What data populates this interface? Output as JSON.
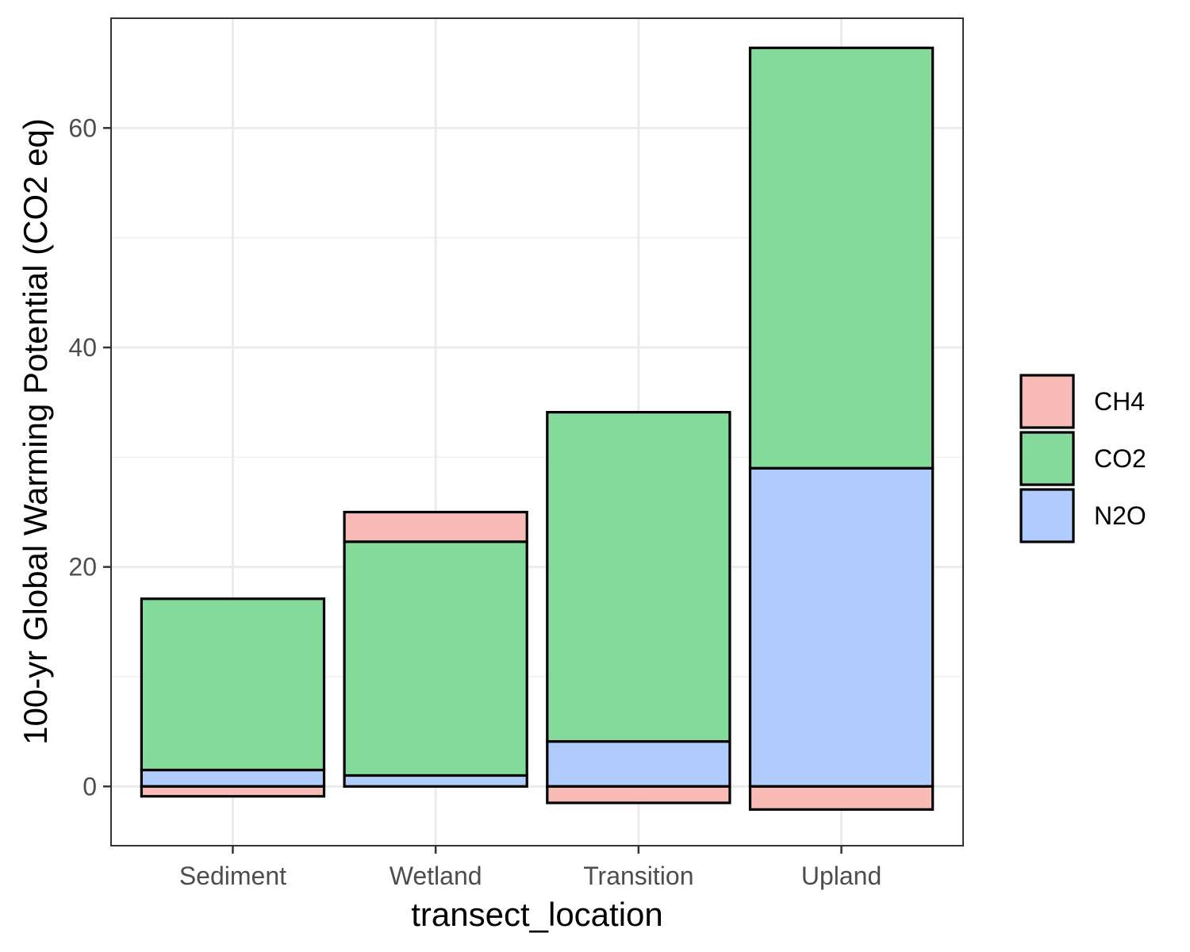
{
  "chart_data": {
    "type": "bar",
    "stacked": true,
    "xlabel": "transect_location",
    "ylabel": "100-yr Global Warming Potential (CO2 eq)",
    "categories": [
      "Sediment",
      "Wetland",
      "Transition",
      "Upland"
    ],
    "series": [
      {
        "name": "CH4",
        "color": "#F8BBB6",
        "values": [
          -0.9,
          2.7,
          -1.5,
          -2.1
        ]
      },
      {
        "name": "CO2",
        "color": "#84DA9A",
        "values": [
          15.6,
          21.3,
          30.0,
          38.3
        ]
      },
      {
        "name": "N2O",
        "color": "#B0CCFD",
        "values": [
          1.5,
          1.0,
          4.1,
          29.0
        ]
      }
    ],
    "stack_order_bottom_to_top": [
      "N2O",
      "CO2",
      "CH4"
    ],
    "ylim": [
      -5.4,
      70.0
    ],
    "yticks": [
      0,
      20,
      40,
      60
    ],
    "grid": true,
    "legend_position": "right",
    "bar_outline_color": "#000000"
  }
}
